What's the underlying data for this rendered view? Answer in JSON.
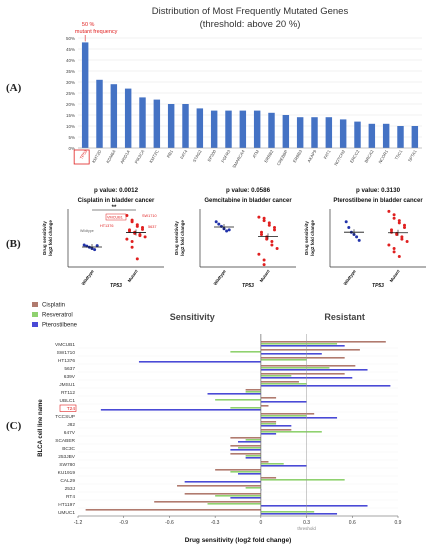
{
  "panel_labels": [
    "(A)",
    "(B)",
    "(C)"
  ],
  "chart_data": [
    {
      "type": "bar",
      "panel": "A",
      "title": "Distribution of Most Frequently Mutated Genes",
      "subtitle": "(threshold: above 20 %)",
      "annotation": [
        "50 %",
        "mutant frequency"
      ],
      "categories": [
        "TP53",
        "KMT2D",
        "KDM6A",
        "ARID1A",
        "PIK3CA",
        "KMT2C",
        "RB1",
        "FAT4",
        "STAG2",
        "EP300",
        "FGFR3",
        "SMARCA4",
        "ATM",
        "ERBB2",
        "CREBBP",
        "ERBB3",
        "AKAP9",
        "FAT1",
        "NOTCH2",
        "ERCC2",
        "BRCA2",
        "NCOR1",
        "TSC1",
        "SPTA1"
      ],
      "values": [
        48,
        31,
        29,
        27,
        23,
        22,
        20,
        20,
        18,
        17,
        17,
        17,
        17,
        16,
        15,
        14,
        14,
        14,
        13,
        12,
        11,
        11,
        10,
        10
      ],
      "ylim": [
        0,
        50
      ],
      "yticks": [
        "0%",
        "5%",
        "10%",
        "15%",
        "20%",
        "25%",
        "30%",
        "35%",
        "40%",
        "45%",
        "50%"
      ],
      "highlight": "TP53",
      "bar_color": "#4472c4",
      "highlight_color": "#e02020"
    },
    {
      "type": "scatter",
      "panel": "B1",
      "title": "Cisplatin in bladder cancer",
      "pvalue": "p value: 0.0012",
      "significance": "**",
      "ylabel": [
        "Drug sensitivity",
        "log2 fold change"
      ],
      "xlabel": "TP53",
      "categories": [
        "Wildtype",
        "Mutant"
      ],
      "groups": [
        {
          "name": "Wildtype",
          "color": "#2233aa",
          "points": [
            -0.45,
            -0.5,
            -0.55,
            -0.6,
            -0.65,
            -0.48
          ]
        },
        {
          "name": "Mutant",
          "color": "#e02020",
          "points": [
            0.82,
            0.62,
            0.55,
            0.42,
            0.35,
            0.3,
            0.22,
            0.2,
            0.15,
            0.1,
            0.05,
            0.0,
            -0.05,
            -0.1,
            -0.2,
            -0.3,
            -0.55,
            -1.05
          ]
        }
      ],
      "labels": [
        "VMCUB1",
        "HT1376",
        "SW1710",
        "5637"
      ],
      "wildtype_label": "Wildtype"
    },
    {
      "type": "scatter",
      "panel": "B2",
      "title": "Gemcitabine in bladder cancer",
      "pvalue": "p value: 0.0586",
      "ylabel": [
        "Drug sensitivity",
        "log2 fold change"
      ],
      "xlabel": "TP53",
      "categories": [
        "Wildtype",
        "Mutant"
      ],
      "groups": [
        {
          "name": "Wildtype",
          "color": "#2233aa",
          "points": [
            0.55,
            0.45,
            0.35,
            0.25,
            0.15,
            0.2
          ]
        },
        {
          "name": "Mutant",
          "color": "#e02020",
          "points": [
            0.75,
            0.7,
            0.6,
            0.5,
            0.4,
            0.3,
            0.2,
            0.1,
            0.0,
            -0.1,
            -0.2,
            -0.3,
            -0.45,
            -0.6,
            -0.85,
            -1.1,
            -1.3
          ]
        }
      ]
    },
    {
      "type": "scatter",
      "panel": "B3",
      "title": "Pterostilbene in bladder cancer",
      "pvalue": "p value: 0.3130",
      "ylabel": [
        "Drug sensitivity",
        "log2 fold change"
      ],
      "xlabel": "TP53",
      "categories": [
        "Wildtype",
        "Mutant"
      ],
      "groups": [
        {
          "name": "Wildtype",
          "color": "#2233aa",
          "points": [
            0.55,
            0.3,
            0.1,
            0.0,
            -0.1,
            -0.25
          ]
        },
        {
          "name": "Mutant",
          "color": "#e02020",
          "points": [
            1.0,
            0.85,
            0.7,
            0.6,
            0.5,
            0.4,
            0.3,
            0.2,
            0.1,
            0.05,
            0.0,
            -0.1,
            -0.2,
            -0.3,
            -0.45,
            -0.6,
            -0.75,
            -0.95
          ]
        }
      ]
    },
    {
      "type": "bar",
      "panel": "C",
      "orientation": "horizontal",
      "left_label": "Sensitivity",
      "right_label": "Resistant",
      "xlabel": "Drug sensitivity (log2 fold change)",
      "ylabel": "BLCA cell line name",
      "threshold_label": "threshold",
      "threshold": 0.3,
      "xlim": [
        -1.2,
        0.9
      ],
      "xticks": [
        "-1.2",
        "-0.9",
        "-0.6",
        "-0.3",
        "0",
        "0.3",
        "0.6",
        "0.9"
      ],
      "highlight": "T24",
      "categories": [
        "VMCUB1",
        "SW1710",
        "HT1376",
        "5637",
        "639V",
        "JMSU1",
        "RT112",
        "UBLC1",
        "T24",
        "TCCSUP",
        "J82",
        "647V",
        "SCABER",
        "BC3C",
        "253JBV",
        "SW780",
        "KU1919",
        "CAL29",
        "253J",
        "RT4",
        "HT1197",
        "UMUC1"
      ],
      "series": [
        {
          "name": "Cisplatin",
          "color": "#b07a6e",
          "values": [
            0.82,
            0.65,
            0.55,
            0.62,
            0.55,
            0.25,
            -0.1,
            0.1,
            0.05,
            0.35,
            0.1,
            0.2,
            -0.2,
            -0.2,
            -0.2,
            0.05,
            -0.3,
            0.1,
            -0.55,
            -0.5,
            -0.7,
            -1.15
          ]
        },
        {
          "name": "Resveratrol",
          "color": "#8fd16f",
          "values": [
            0.5,
            -0.2,
            0.3,
            0.45,
            0.2,
            0.3,
            -0.1,
            -0.3,
            -0.2,
            0.3,
            0.1,
            0.4,
            -0.1,
            -0.15,
            -0.1,
            0.15,
            -0.2,
            0.55,
            -0.1,
            -0.3,
            -0.35,
            0.35
          ]
        },
        {
          "name": "Pterostilbene",
          "color": "#4a4ad6",
          "values": [
            0.55,
            0.4,
            -0.8,
            0.7,
            0.6,
            0.85,
            -0.35,
            0.3,
            -1.05,
            0.5,
            0.2,
            0.1,
            -0.15,
            -0.2,
            -0.1,
            0.3,
            -0.15,
            -0.5,
            0.0,
            -0.2,
            0.7,
            0.5
          ]
        }
      ]
    }
  ]
}
